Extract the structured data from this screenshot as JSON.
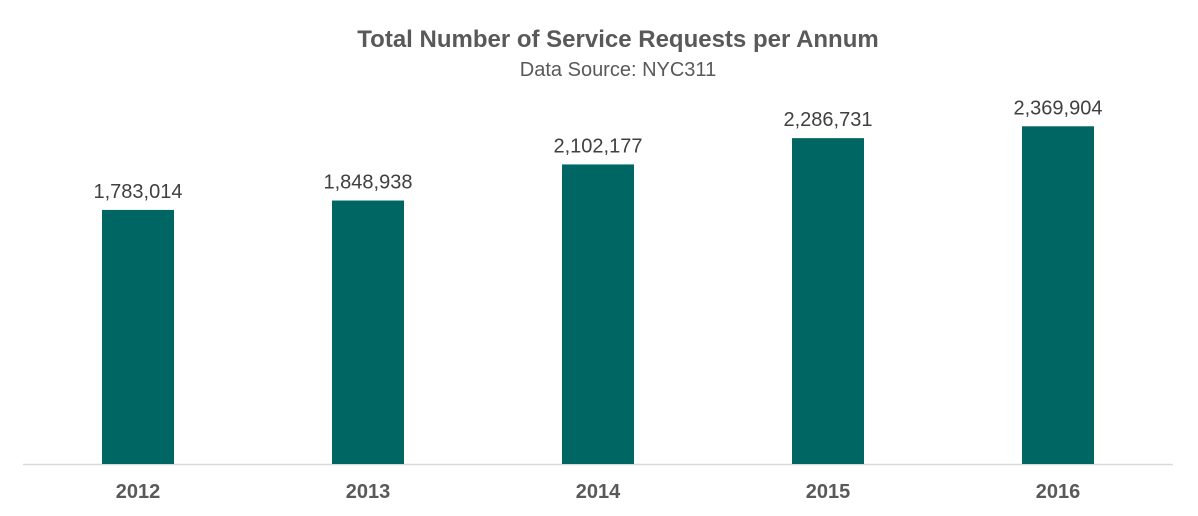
{
  "chart_data": {
    "type": "bar",
    "title": "Total Number of Service Requests per Annum",
    "subtitle": "Data Source: NYC311",
    "categories": [
      "2012",
      "2013",
      "2014",
      "2015",
      "2016"
    ],
    "values": [
      1783014,
      1848938,
      2102177,
      2286731,
      2369904
    ],
    "data_labels": [
      "1,783,014",
      "1,848,938",
      "2,102,177",
      "2,286,731",
      "2,369,904"
    ],
    "ylim": [
      0,
      2600000
    ],
    "grid": false,
    "legend": "none",
    "xlabel": "",
    "ylabel": "",
    "bar_color": "#006663",
    "axis_color": "#d9d9d9",
    "text_color": "#595959",
    "label_color": "#404040"
  }
}
